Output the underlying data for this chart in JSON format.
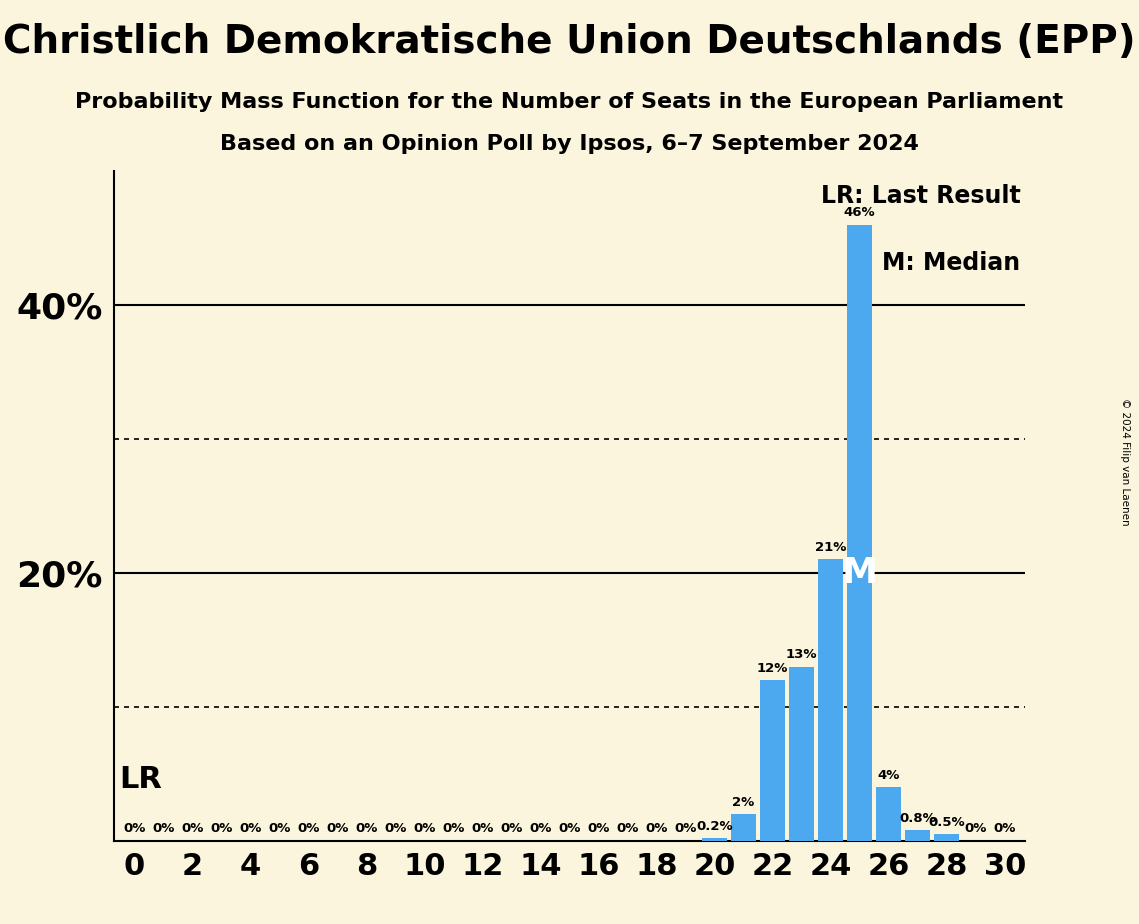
{
  "title": "Christlich Demokratische Union Deutschlands (EPP)",
  "subtitle1": "Probability Mass Function for the Number of Seats in the European Parliament",
  "subtitle2": "Based on an Opinion Poll by Ipsos, 6–7 September 2024",
  "copyright": "© 2024 Filip van Laenen",
  "background_color": "#FAF5DC",
  "bar_color": "#4CA9F0",
  "seats": [
    0,
    1,
    2,
    3,
    4,
    5,
    6,
    7,
    8,
    9,
    10,
    11,
    12,
    13,
    14,
    15,
    16,
    17,
    18,
    19,
    20,
    21,
    22,
    23,
    24,
    25,
    26,
    27,
    28,
    29,
    30
  ],
  "probabilities": [
    0,
    0,
    0,
    0,
    0,
    0,
    0,
    0,
    0,
    0,
    0,
    0,
    0,
    0,
    0,
    0,
    0,
    0,
    0,
    0,
    0.2,
    2,
    12,
    13,
    21,
    46,
    4,
    0.8,
    0.5,
    0,
    0
  ],
  "labels": [
    "0%",
    "0%",
    "0%",
    "0%",
    "0%",
    "0%",
    "0%",
    "0%",
    "0%",
    "0%",
    "0%",
    "0%",
    "0%",
    "0%",
    "0%",
    "0%",
    "0%",
    "0%",
    "0%",
    "0%",
    "0.2%",
    "2%",
    "12%",
    "13%",
    "21%",
    "46%",
    "4%",
    "0.8%",
    "0.5%",
    "0%",
    "0%"
  ],
  "median_seat": 25,
  "ylim": [
    0,
    50
  ],
  "solid_gridlines": [
    20,
    40
  ],
  "dotted_gridlines": [
    10,
    30
  ],
  "legend_lr": "LR: Last Result",
  "legend_m": "M: Median",
  "lr_label": "LR",
  "m_label": "M",
  "title_fontsize": 28,
  "subtitle_fontsize": 16,
  "label_fontsize": 9.5,
  "axis_tick_fontsize": 22,
  "ytick_fontsize": 26
}
